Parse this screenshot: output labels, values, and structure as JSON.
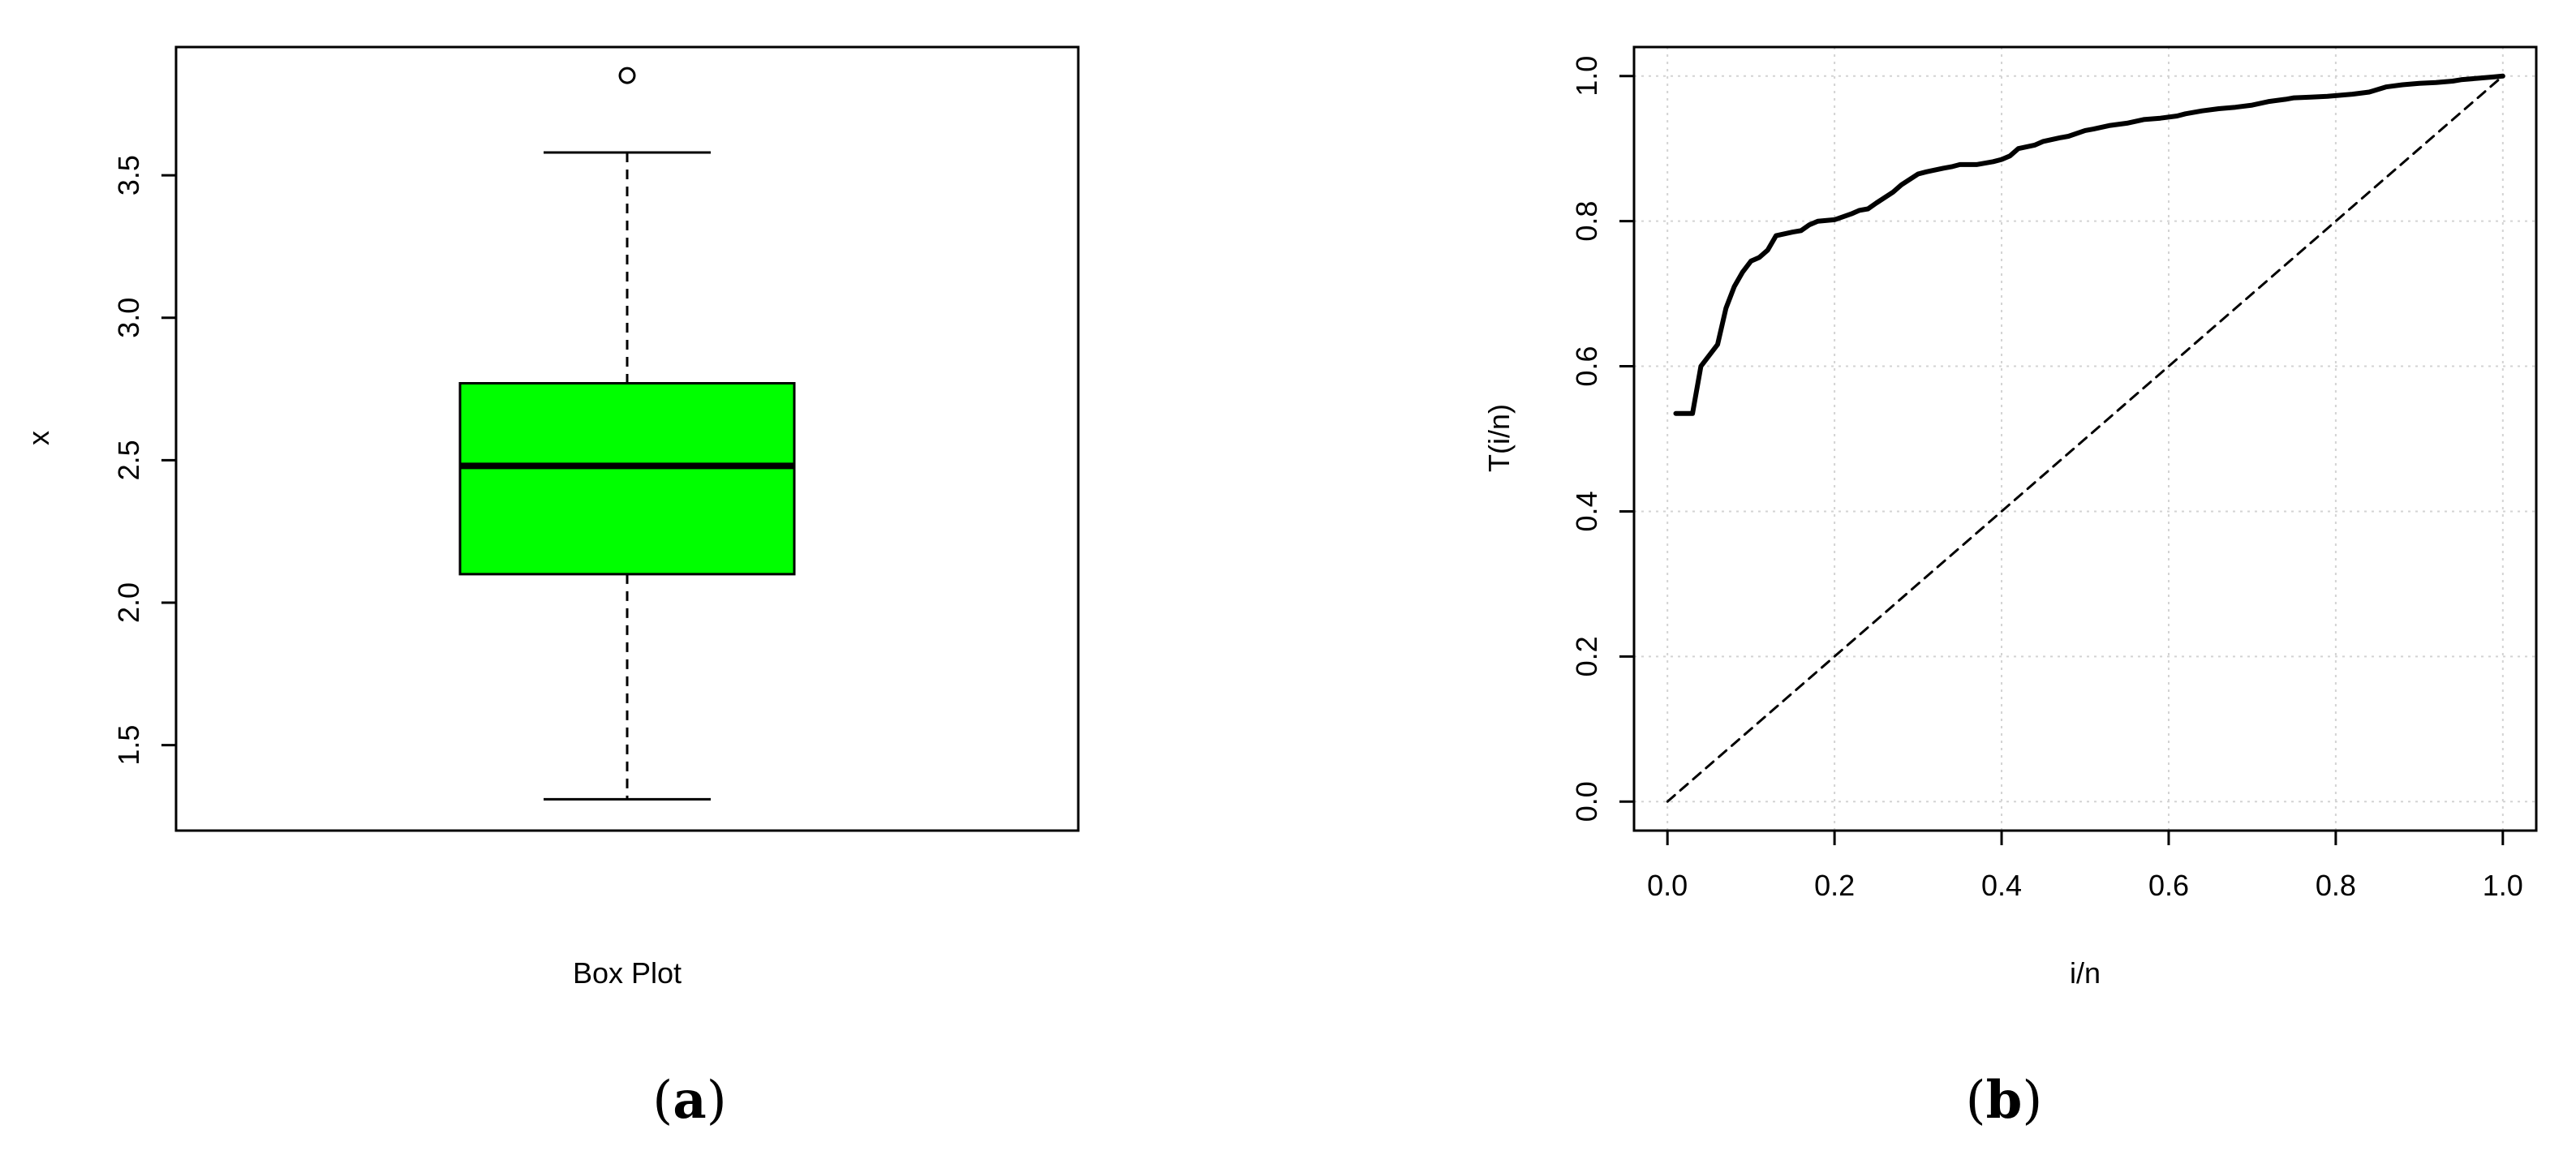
{
  "chart_data": [
    {
      "type": "boxplot",
      "panel_label": "a",
      "xlabel": "Box Plot",
      "ylabel": "x",
      "ylim": [
        1.2,
        3.95
      ],
      "yticks": [
        1.5,
        2.0,
        2.5,
        3.0,
        3.5
      ],
      "ytick_labels": [
        "1.5",
        "2.0",
        "2.5",
        "3.0",
        "3.5"
      ],
      "box": {
        "min": 1.31,
        "q1": 2.1,
        "median": 2.48,
        "q3": 2.77,
        "max": 3.58,
        "outliers": [
          3.85
        ]
      },
      "box_color": "#00ff00"
    },
    {
      "type": "line",
      "panel_label": "b",
      "xlabel": "i/n",
      "ylabel": "T(i/n)",
      "xlim": [
        -0.04,
        1.04
      ],
      "ylim": [
        -0.04,
        1.04
      ],
      "xticks": [
        0.0,
        0.2,
        0.4,
        0.6,
        0.8,
        1.0
      ],
      "xtick_labels": [
        "0.0",
        "0.2",
        "0.4",
        "0.6",
        "0.8",
        "1.0"
      ],
      "yticks": [
        0.0,
        0.2,
        0.4,
        0.6,
        0.8,
        1.0
      ],
      "ytick_labels": [
        "0.0",
        "0.2",
        "0.4",
        "0.6",
        "0.8",
        "1.0"
      ],
      "grid": true,
      "series": [
        {
          "style": "solid",
          "x": [
            0.01,
            0.03,
            0.04,
            0.06,
            0.07,
            0.08,
            0.09,
            0.1,
            0.11,
            0.12,
            0.13,
            0.15,
            0.16,
            0.17,
            0.18,
            0.2,
            0.22,
            0.23,
            0.24,
            0.25,
            0.27,
            0.28,
            0.3,
            0.31,
            0.33,
            0.34,
            0.35,
            0.37,
            0.39,
            0.4,
            0.41,
            0.42,
            0.44,
            0.45,
            0.47,
            0.48,
            0.5,
            0.51,
            0.53,
            0.55,
            0.57,
            0.59,
            0.61,
            0.62,
            0.64,
            0.66,
            0.68,
            0.7,
            0.72,
            0.74,
            0.75,
            0.77,
            0.79,
            0.8,
            0.82,
            0.84,
            0.86,
            0.88,
            0.9,
            0.92,
            0.94,
            0.95,
            0.97,
            0.99,
            1.0
          ],
          "y": [
            0.535,
            0.535,
            0.6,
            0.63,
            0.68,
            0.71,
            0.73,
            0.745,
            0.75,
            0.76,
            0.78,
            0.785,
            0.787,
            0.795,
            0.8,
            0.802,
            0.81,
            0.815,
            0.817,
            0.825,
            0.84,
            0.85,
            0.865,
            0.868,
            0.873,
            0.875,
            0.878,
            0.878,
            0.882,
            0.885,
            0.89,
            0.9,
            0.905,
            0.91,
            0.915,
            0.917,
            0.925,
            0.927,
            0.932,
            0.935,
            0.94,
            0.942,
            0.945,
            0.948,
            0.952,
            0.955,
            0.957,
            0.96,
            0.965,
            0.968,
            0.97,
            0.971,
            0.972,
            0.973,
            0.975,
            0.978,
            0.985,
            0.988,
            0.99,
            0.991,
            0.993,
            0.995,
            0.997,
            0.999,
            1.0
          ]
        },
        {
          "style": "dashed",
          "x": [
            0.0,
            1.0
          ],
          "y": [
            0.0,
            1.0
          ]
        }
      ]
    }
  ]
}
